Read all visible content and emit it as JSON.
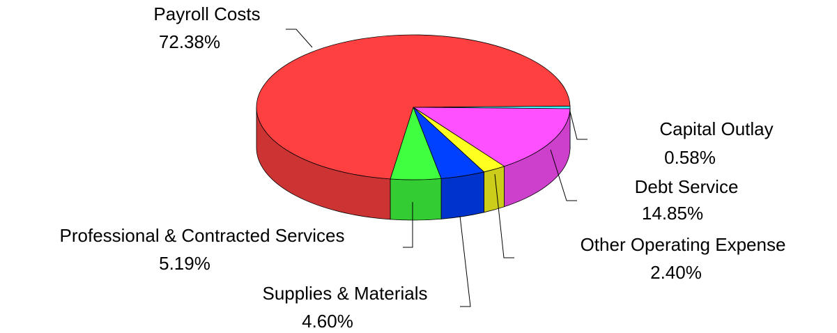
{
  "chart_data": {
    "type": "pie",
    "categories": [
      "Capital Outlay",
      "Debt Service",
      "Other Operating Expense",
      "Supplies & Materials",
      "Professional & Contracted Services",
      "Payroll Costs"
    ],
    "values": [
      0.58,
      14.85,
      2.4,
      4.6,
      5.19,
      72.38
    ],
    "value_labels": [
      "0.58%",
      "14.85%",
      "2.40%",
      "4.60%",
      "5.19%",
      "72.38%"
    ],
    "colors": [
      "#40ffff",
      "#ff50ff",
      "#ffff20",
      "#0040ff",
      "#40ff40",
      "#ff4040"
    ]
  }
}
